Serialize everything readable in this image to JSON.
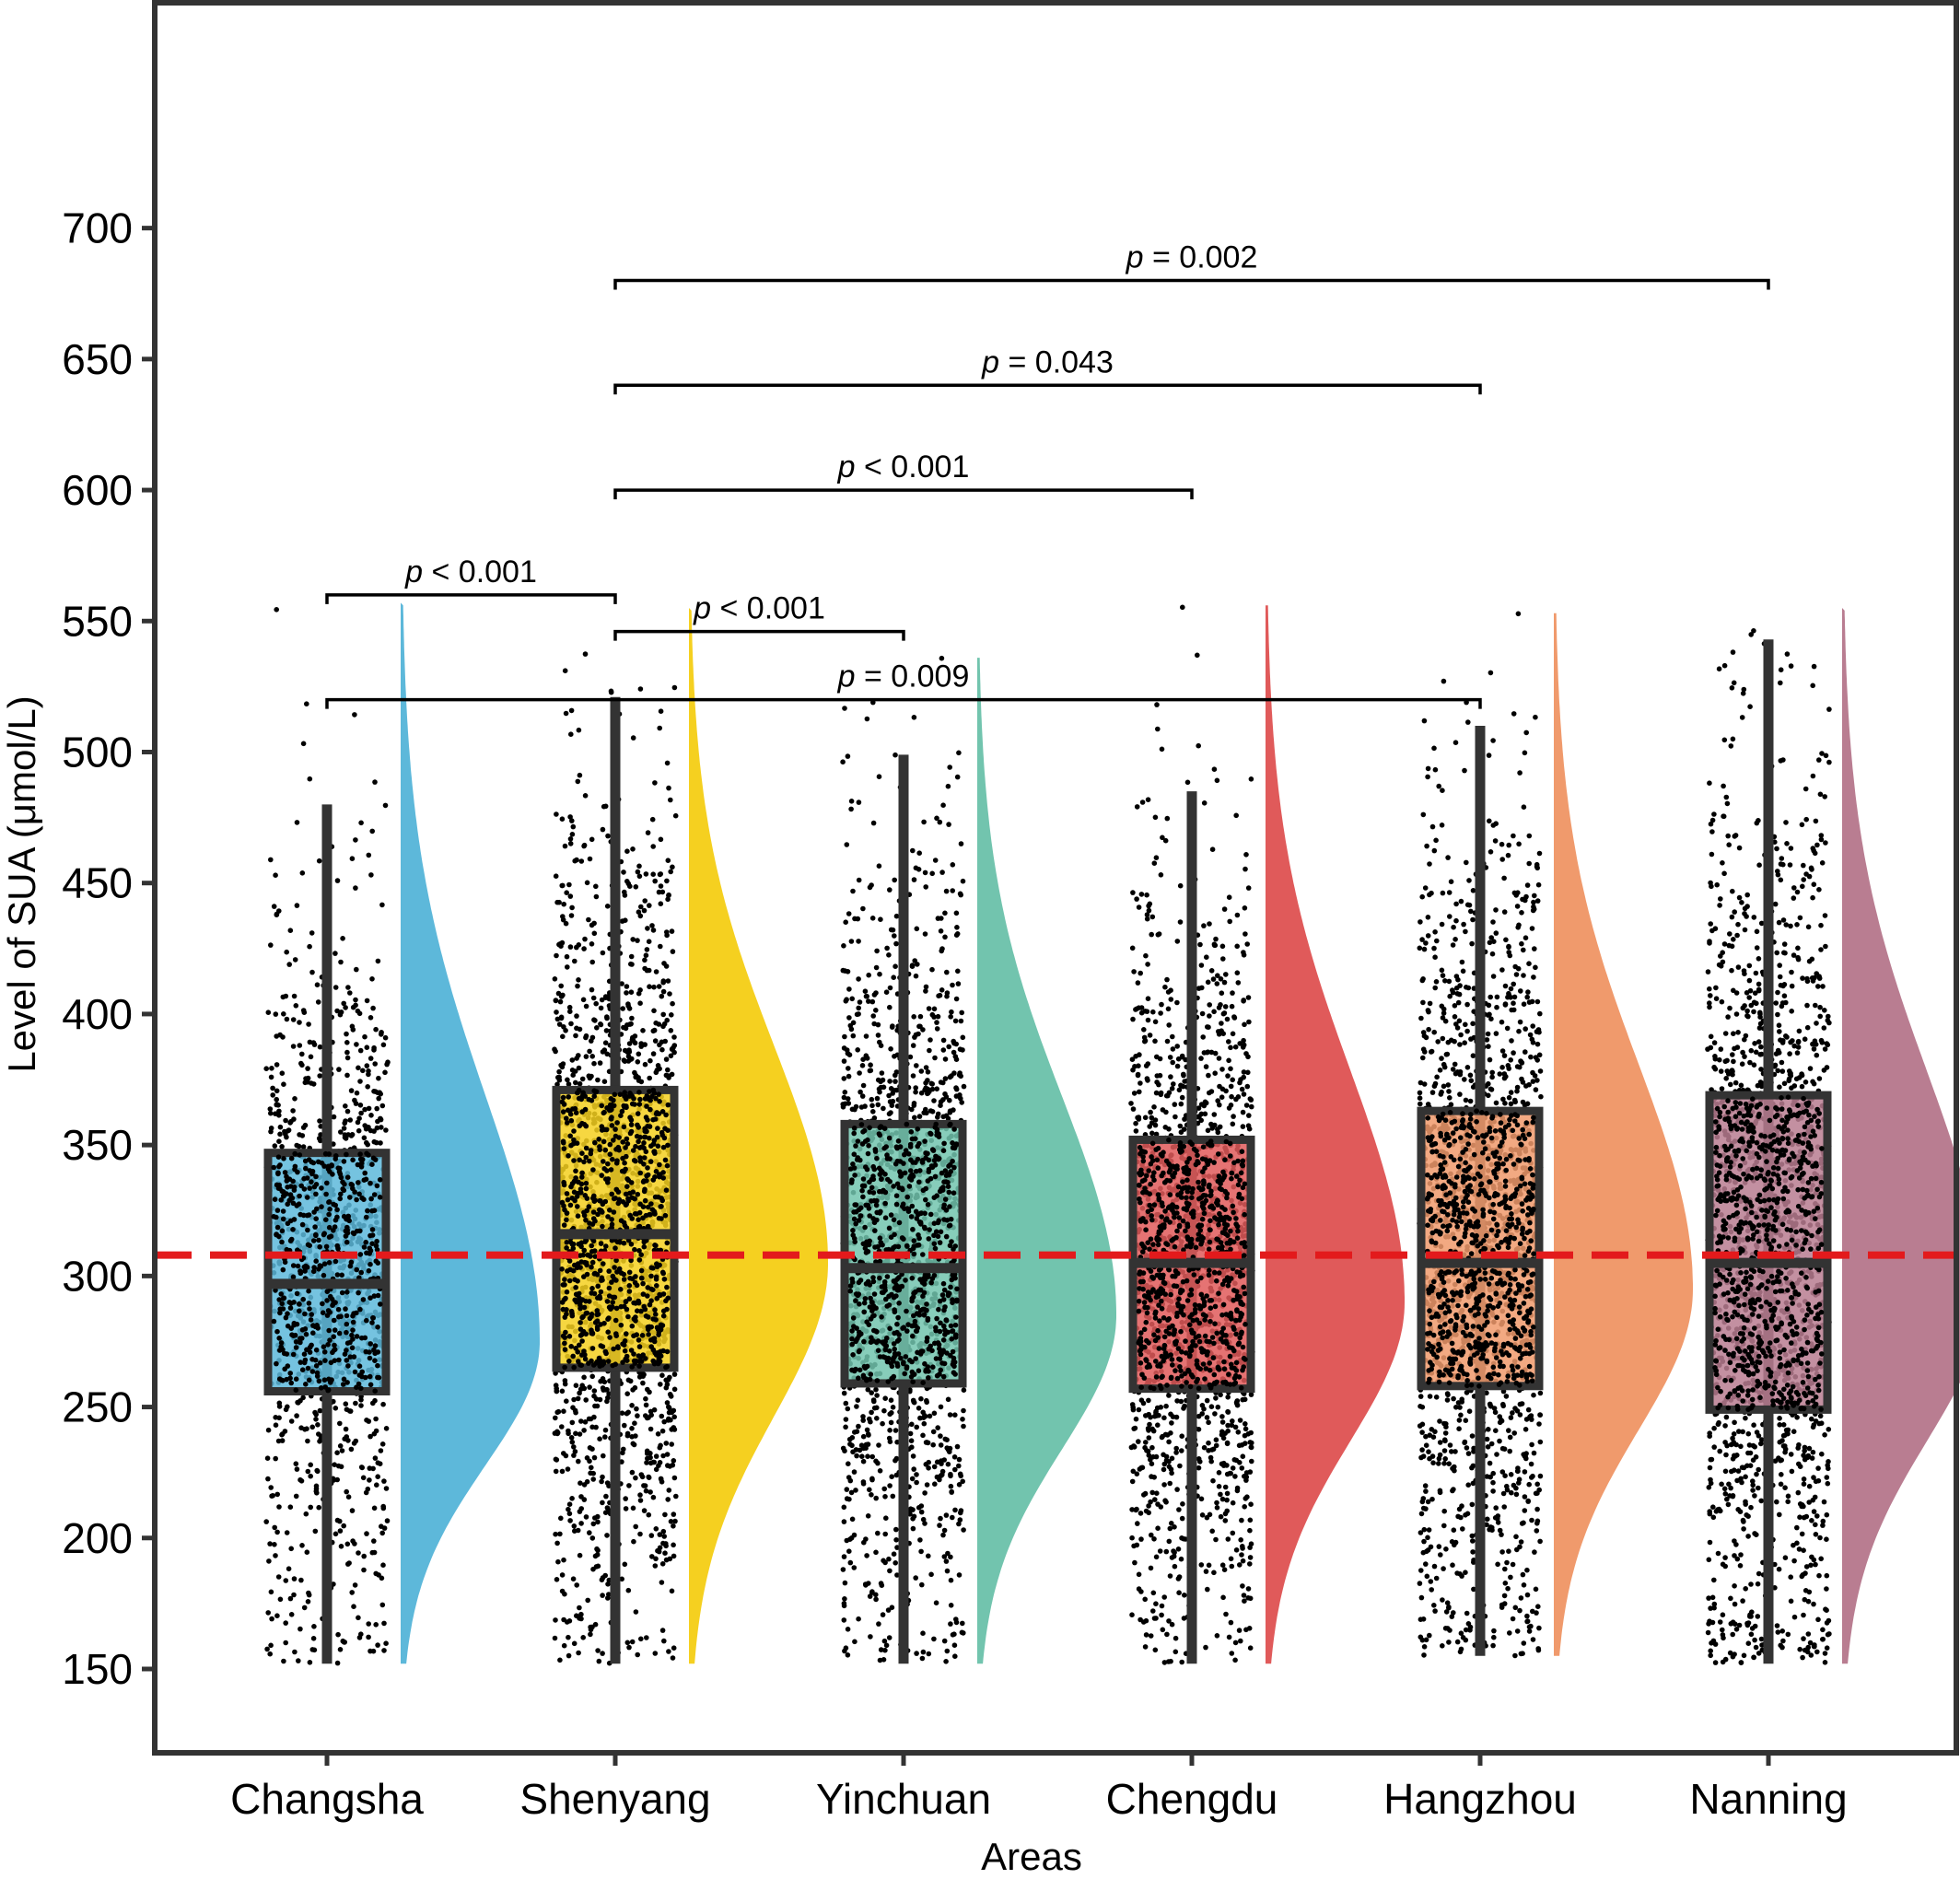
{
  "chart_data": {
    "type": "raincloud",
    "xlabel": "Areas",
    "ylabel": "Level of SUA (μmol/L)",
    "ylim": [
      118,
      728
    ],
    "yticks": [
      150,
      200,
      250,
      300,
      350,
      400,
      450,
      500,
      550,
      600,
      650,
      700
    ],
    "reference_line": {
      "value": 308,
      "color": "#e31a1c",
      "style": "dashed"
    },
    "categories": [
      "Changsha",
      "Shenyang",
      "Yinchuan",
      "Chengdu",
      "Hangzhou",
      "Nanning"
    ],
    "groups": [
      {
        "name": "Changsha",
        "color": "#5db8da",
        "whisker_low": 152,
        "q1": 256,
        "median": 297,
        "q3": 347,
        "whisker_high": 480,
        "point_max": 557,
        "density_peak": 275,
        "n_points": 950
      },
      {
        "name": "Shenyang",
        "color": "#f5d020",
        "whisker_low": 152,
        "q1": 265,
        "median": 316,
        "q3": 371,
        "whisker_high": 521,
        "point_max": 555,
        "density_peak": 305,
        "n_points": 1500
      },
      {
        "name": "Yinchuan",
        "color": "#72c4ae",
        "whisker_low": 152,
        "q1": 259,
        "median": 303,
        "q3": 358,
        "whisker_high": 499,
        "point_max": 536,
        "density_peak": 285,
        "n_points": 1300
      },
      {
        "name": "Chengdu",
        "color": "#e05a5a",
        "whisker_low": 152,
        "q1": 257,
        "median": 305,
        "q3": 352,
        "whisker_high": 485,
        "point_max": 556,
        "density_peak": 290,
        "n_points": 1400
      },
      {
        "name": "Hangzhou",
        "color": "#f09a6c",
        "whisker_low": 155,
        "q1": 258,
        "median": 305,
        "q3": 363,
        "whisker_high": 510,
        "point_max": 553,
        "density_peak": 295,
        "n_points": 1450
      },
      {
        "name": "Nanning",
        "color": "#b97d91",
        "whisker_low": 152,
        "q1": 249,
        "median": 305,
        "q3": 369,
        "whisker_high": 543,
        "point_max": 555,
        "density_peak": 290,
        "n_points": 1500
      }
    ],
    "comparisons": [
      {
        "from": "Changsha",
        "to": "Shenyang",
        "y": 560,
        "label": "p < 0.001"
      },
      {
        "from": "Shenyang",
        "to": "Yinchuan",
        "y": 546,
        "label": "p < 0.001"
      },
      {
        "from": "Changsha",
        "to": "Hangzhou",
        "y": 520,
        "label": "p = 0.009"
      },
      {
        "from": "Shenyang",
        "to": "Chengdu",
        "y": 600,
        "label": "p < 0.001"
      },
      {
        "from": "Shenyang",
        "to": "Hangzhou",
        "y": 640,
        "label": "p = 0.043"
      },
      {
        "from": "Shenyang",
        "to": "Nanning",
        "y": 680,
        "label": "p = 0.002"
      }
    ]
  }
}
